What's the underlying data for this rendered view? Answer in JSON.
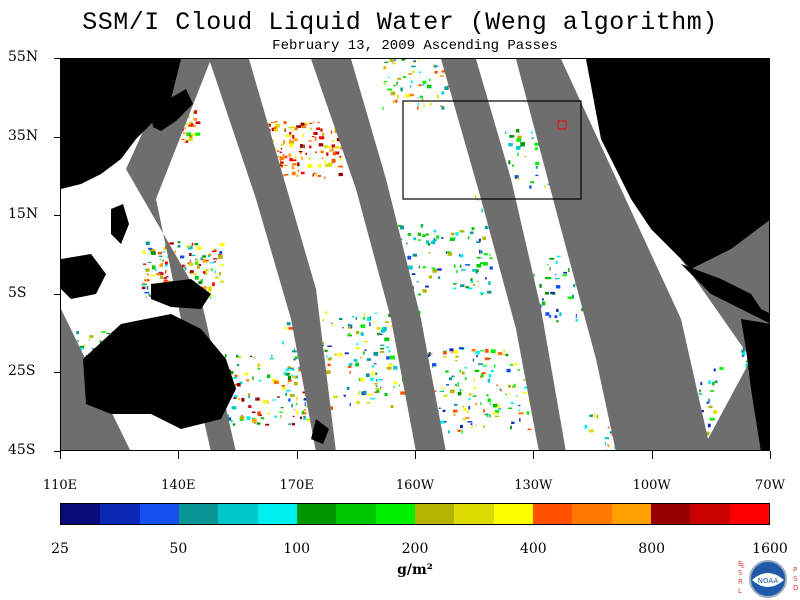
{
  "title": "SSM/I Cloud Liquid Water (Weng algorithm)",
  "subtitle": "February 13, 2009  Ascending Passes",
  "lat_labels": [
    "55N",
    "35N",
    "15N",
    "5S",
    "25S",
    "45S"
  ],
  "lon_labels": [
    "110E",
    "140E",
    "170E",
    "160W",
    "130W",
    "100W",
    "70W"
  ],
  "colorbar": {
    "colors": [
      "#0a0a78",
      "#0a28b4",
      "#1450f0",
      "#0a9696",
      "#00c8c8",
      "#00f0f0",
      "#009600",
      "#00c800",
      "#00f000",
      "#b4b400",
      "#dcdc00",
      "#ffff00",
      "#ff5000",
      "#ff7800",
      "#ffa000",
      "#960000",
      "#c80000",
      "#ff0000"
    ],
    "labels": [
      "25",
      "50",
      "100",
      "200",
      "400",
      "800",
      "1600"
    ]
  },
  "units": "g/m²",
  "logo": {
    "left_letters": "ESRL",
    "right_letters": "PSD",
    "center": "NOAA"
  },
  "palette": {
    "gap_gray": "#6e6e6e",
    "land": "#000000",
    "ocean_clear": "#ffffff",
    "box": "#000000",
    "marker": "#ff0000"
  }
}
